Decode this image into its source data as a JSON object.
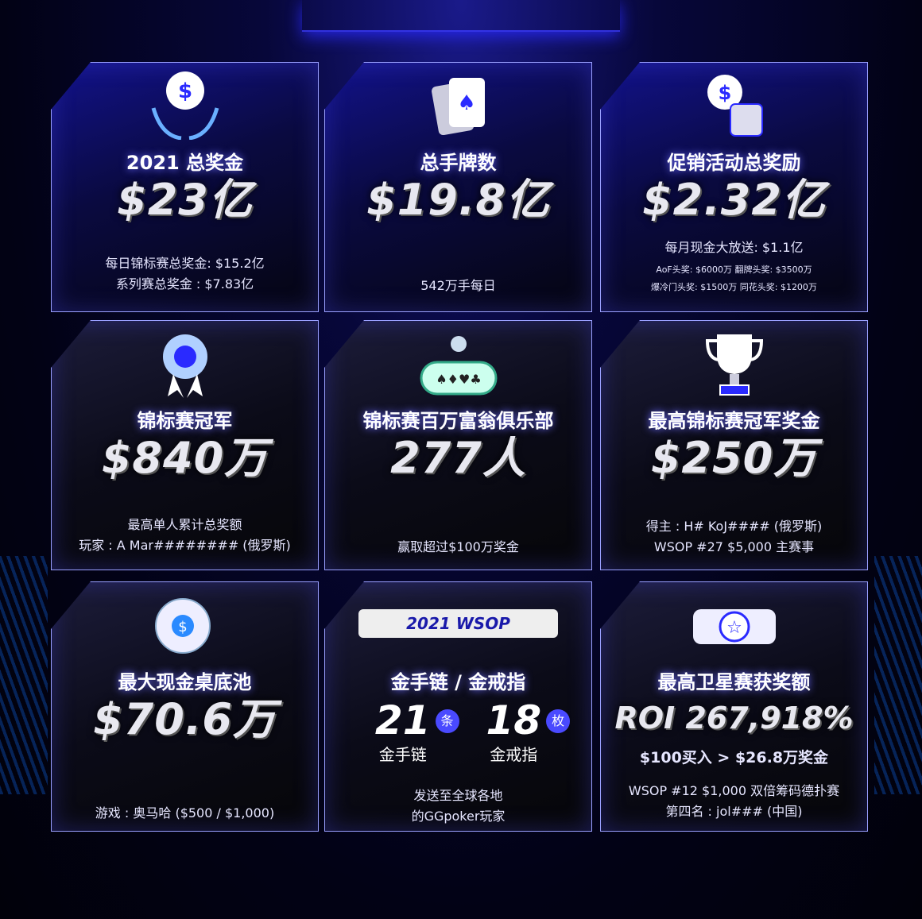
{
  "cards": [
    {
      "icon": "hands-dollar-icon",
      "title": "2021 总奖金",
      "value": "$23亿",
      "sub": [
        "每日锦标赛总奖金: $15.2亿",
        "系列赛总奖金 : $7.83亿"
      ]
    },
    {
      "icon": "playing-cards-icon",
      "title": "总手牌数",
      "value": "$19.8亿",
      "sub": [
        "542万手每日"
      ]
    },
    {
      "icon": "dollar-thumbs-up-icon",
      "title": "促销活动总奖励",
      "value": "$2.32亿",
      "sub": [
        "每月现金大放送: $1.1亿"
      ],
      "small": [
        "AoF头奖: $6000万 翻牌头奖: $3500万",
        "爆冷门头奖: $1500万 同花头奖: $1200万"
      ]
    },
    {
      "icon": "medal-icon",
      "title": "锦标赛冠军",
      "value": "$840万",
      "sub": [
        "最高单人累计总奖额",
        "玩家 : A Mar######## (俄罗斯)"
      ]
    },
    {
      "icon": "poker-table-icon",
      "title": "锦标赛百万富翁俱乐部",
      "value": "277人",
      "sub": [
        "赢取超过$100万奖金"
      ]
    },
    {
      "icon": "trophy-icon",
      "title": "最高锦标赛冠军奖金",
      "value": "$250万",
      "sub": [
        "得主 : H# KoJ#### (俄罗斯)",
        "WSOP #27 $5,000 主赛事"
      ]
    },
    {
      "icon": "chips-icon",
      "title": "最大现金桌底池",
      "value": "$70.6万",
      "sub": [
        "游戏 : 奥马哈 ($500 / $1,000)"
      ]
    },
    {
      "icon": "wsop-bracelet-icon",
      "title": "金手链 / 金戒指",
      "badge": "2021 WSOP",
      "bracelets": {
        "count": "21",
        "unit": "条",
        "label": "金手链"
      },
      "rings": {
        "count": "18",
        "unit": "枚",
        "label": "金戒指"
      },
      "sub": [
        "发送至全球各地",
        "的GGpoker玩家"
      ]
    },
    {
      "icon": "star-ring-icon",
      "title": "最高卫星赛获奖额",
      "value": "ROI 267,918%",
      "line2": "$100买入 > $26.8万奖金",
      "sub": [
        "WSOP #12 $1,000 双倍筹码德扑赛",
        "第四名 : jol### (中国)"
      ]
    }
  ]
}
